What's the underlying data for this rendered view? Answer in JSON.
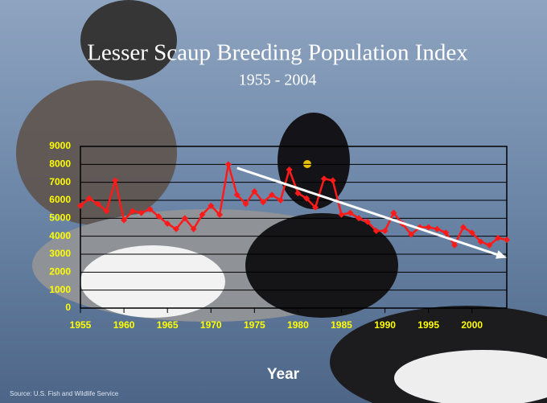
{
  "chart_data": {
    "type": "line",
    "title": "Lesser Scaup Breeding Population Index",
    "subtitle": "1955 - 2004",
    "x_label": "Year",
    "source": "Source: U.S. Fish and Wildlife Service",
    "x": [
      1955,
      1956,
      1957,
      1958,
      1959,
      1960,
      1961,
      1962,
      1963,
      1964,
      1965,
      1966,
      1967,
      1968,
      1969,
      1970,
      1971,
      1972,
      1973,
      1974,
      1975,
      1976,
      1977,
      1978,
      1979,
      1980,
      1981,
      1982,
      1983,
      1984,
      1985,
      1986,
      1987,
      1988,
      1989,
      1990,
      1991,
      1992,
      1993,
      1994,
      1995,
      1996,
      1997,
      1998,
      1999,
      2000,
      2001,
      2002,
      2003,
      2004
    ],
    "series": [
      {
        "color": "#ff1a1a",
        "values": [
          5700,
          6100,
          5800,
          5400,
          7100,
          4900,
          5400,
          5300,
          5500,
          5100,
          4700,
          4400,
          5000,
          4400,
          5200,
          5700,
          5200,
          8000,
          6300,
          5800,
          6500,
          5900,
          6300,
          6000,
          7700,
          6400,
          6100,
          5600,
          7200,
          7100,
          5200,
          5300,
          5000,
          4800,
          4300,
          4300,
          5300,
          4700,
          4100,
          4500,
          4500,
          4400,
          4200,
          3500,
          4500,
          4200,
          3700,
          3500,
          3900,
          3800
        ]
      }
    ],
    "trend_line": {
      "x": [
        1973,
        2004
      ],
      "y": [
        7800,
        2800
      ],
      "color": "#ffffff"
    },
    "xlim": [
      1955,
      2004
    ],
    "xticks": [
      1955,
      1960,
      1965,
      1970,
      1975,
      1980,
      1985,
      1990,
      1995,
      2000
    ],
    "ylim": [
      0,
      9000
    ],
    "yticks": [
      0,
      1000,
      2000,
      3000,
      4000,
      5000,
      6000,
      7000,
      8000,
      9000
    ],
    "grid": true
  }
}
